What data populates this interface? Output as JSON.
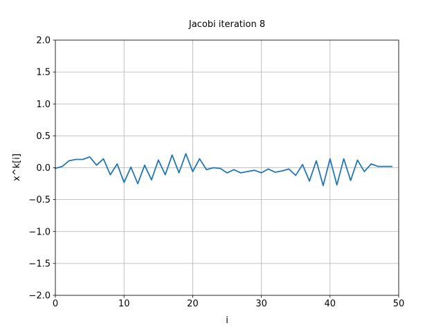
{
  "chart_data": {
    "type": "line",
    "title": "Jacobi iteration 8",
    "xlabel": "i",
    "ylabel": "x^k[i]",
    "xlim": [
      0,
      50
    ],
    "ylim": [
      -2.0,
      2.0
    ],
    "grid": true,
    "x_ticks": [
      0,
      10,
      20,
      30,
      40,
      50
    ],
    "x_tick_labels": [
      "0",
      "10",
      "20",
      "30",
      "40",
      "50"
    ],
    "y_ticks": [
      -2.0,
      -1.5,
      -1.0,
      -0.5,
      0.0,
      0.5,
      1.0,
      1.5,
      2.0
    ],
    "y_tick_labels": [
      "−2.0",
      "−1.5",
      "−1.0",
      "−0.5",
      "0.0",
      "0.5",
      "1.0",
      "1.5",
      "2.0"
    ],
    "series": [
      {
        "color": "#1f77b4",
        "x": [
          0,
          1,
          2,
          3,
          4,
          5,
          6,
          7,
          8,
          9,
          10,
          11,
          12,
          13,
          14,
          15,
          16,
          17,
          18,
          19,
          20,
          21,
          22,
          23,
          24,
          25,
          26,
          27,
          28,
          29,
          30,
          31,
          32,
          33,
          34,
          35,
          36,
          37,
          38,
          39,
          40,
          41,
          42,
          43,
          44,
          45,
          46,
          47,
          48,
          49
        ],
        "y": [
          -0.01,
          0.02,
          0.11,
          0.13,
          0.13,
          0.17,
          0.04,
          0.14,
          -0.11,
          0.06,
          -0.23,
          0.01,
          -0.25,
          0.04,
          -0.19,
          0.12,
          -0.11,
          0.2,
          -0.08,
          0.22,
          -0.06,
          0.14,
          -0.03,
          0.0,
          -0.01,
          -0.08,
          -0.03,
          -0.08,
          -0.06,
          -0.04,
          -0.08,
          -0.02,
          -0.07,
          -0.05,
          -0.02,
          -0.12,
          0.05,
          -0.21,
          0.11,
          -0.28,
          0.14,
          -0.27,
          0.14,
          -0.2,
          0.12,
          -0.06,
          0.06,
          0.02,
          0.02,
          0.02
        ]
      }
    ]
  }
}
